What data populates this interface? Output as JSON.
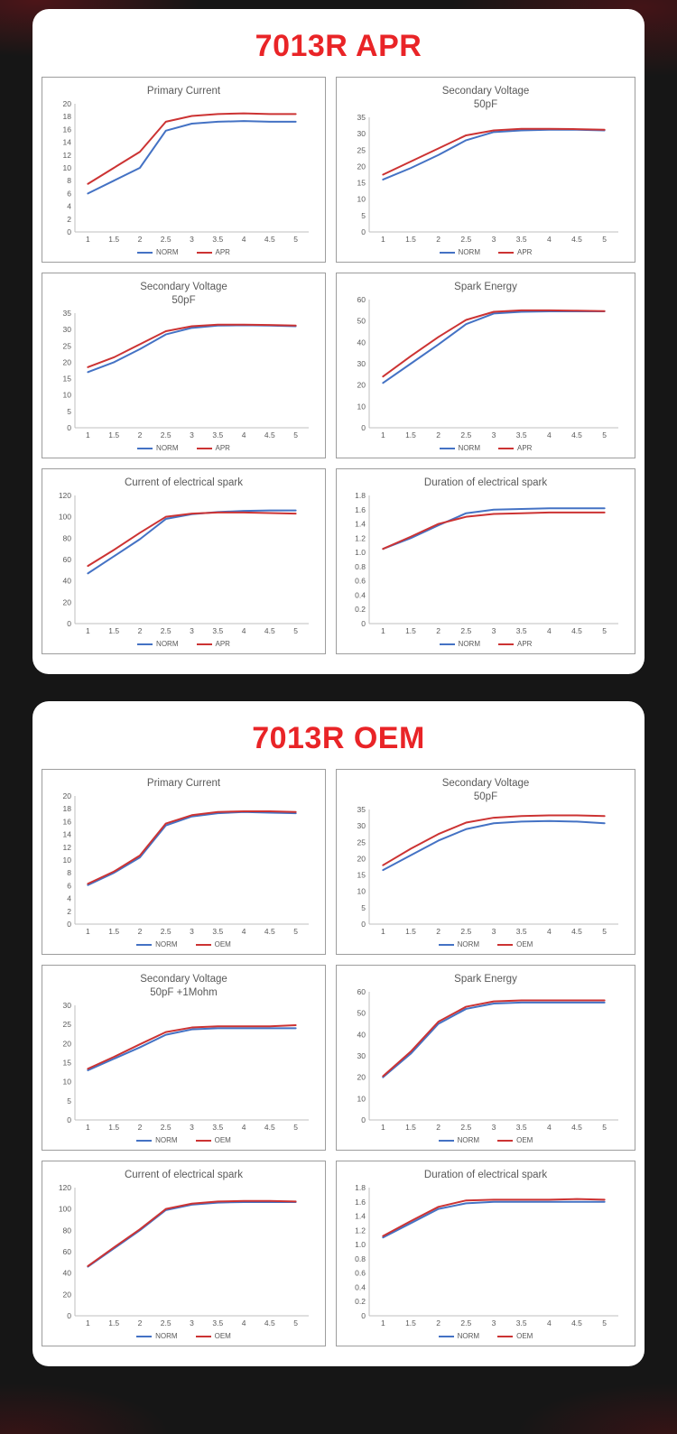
{
  "colors": {
    "panel_title_red": "#e92427",
    "norm_blue": "#4472c4",
    "compare_red": "#cc3333",
    "axis_gray": "#bfbfbf",
    "label_gray": "#595959",
    "panel_bg": "#ffffff",
    "page_bg": "#161616"
  },
  "panels": [
    {
      "title": "7013R APR",
      "legend": [
        "NORM",
        "APR"
      ]
    },
    {
      "title": "7013R OEM",
      "legend": [
        "NORM",
        "OEM"
      ]
    }
  ],
  "chart_data": [
    {
      "type": "line",
      "group": "7013R APR",
      "title": "Primary Current",
      "subtitle": "",
      "x": [
        1,
        1.5,
        2,
        2.5,
        3,
        3.5,
        4,
        4.5,
        5
      ],
      "ylim": [
        0,
        20
      ],
      "ytick": 2,
      "grid": false,
      "legend_position": "bottom",
      "series": [
        {
          "name": "NORM",
          "color": "#4472c4",
          "values": [
            6,
            8,
            10,
            15.8,
            16.9,
            17.2,
            17.3,
            17.2,
            17.2
          ]
        },
        {
          "name": "APR",
          "color": "#cc3333",
          "values": [
            7.5,
            10,
            12.5,
            17.2,
            18.1,
            18.4,
            18.5,
            18.4,
            18.4
          ]
        }
      ]
    },
    {
      "type": "line",
      "group": "7013R APR",
      "title": "Secondary Voltage",
      "subtitle": "50pF",
      "x": [
        1,
        1.5,
        2,
        2.5,
        3,
        3.5,
        4,
        4.5,
        5
      ],
      "ylim": [
        0,
        35
      ],
      "ytick": 5,
      "grid": false,
      "legend_position": "bottom",
      "series": [
        {
          "name": "NORM",
          "color": "#4472c4",
          "values": [
            16,
            19.5,
            23.5,
            28,
            30.5,
            31,
            31.2,
            31.2,
            31
          ]
        },
        {
          "name": "APR",
          "color": "#cc3333",
          "values": [
            17.5,
            21.5,
            25.5,
            29.5,
            31,
            31.5,
            31.5,
            31.4,
            31.2
          ]
        }
      ]
    },
    {
      "type": "line",
      "group": "7013R APR",
      "title": "Secondary Voltage",
      "subtitle": "50pF",
      "x": [
        1,
        1.5,
        2,
        2.5,
        3,
        3.5,
        4,
        4.5,
        5
      ],
      "ylim": [
        0,
        35
      ],
      "ytick": 5,
      "grid": false,
      "legend_position": "bottom",
      "series": [
        {
          "name": "NORM",
          "color": "#4472c4",
          "values": [
            17,
            20,
            24,
            28.5,
            30.5,
            31.2,
            31.3,
            31.2,
            31
          ]
        },
        {
          "name": "APR",
          "color": "#cc3333",
          "values": [
            18.5,
            21.5,
            25.5,
            29.5,
            31,
            31.5,
            31.5,
            31.4,
            31.2
          ]
        }
      ]
    },
    {
      "type": "line",
      "group": "7013R APR",
      "title": "Spark Energy",
      "subtitle": "",
      "x": [
        1,
        1.5,
        2,
        2.5,
        3,
        3.5,
        4,
        4.5,
        5
      ],
      "ylim": [
        0,
        60
      ],
      "ytick": 10,
      "grid": false,
      "legend_position": "bottom",
      "series": [
        {
          "name": "NORM",
          "color": "#4472c4",
          "values": [
            21,
            30,
            39,
            48.5,
            53.5,
            54.3,
            54.5,
            54.5,
            54.5
          ]
        },
        {
          "name": "APR",
          "color": "#cc3333",
          "values": [
            24,
            33.5,
            42.5,
            50.5,
            54.3,
            55,
            55,
            54.8,
            54.6
          ]
        }
      ]
    },
    {
      "type": "line",
      "group": "7013R APR",
      "title": "Current of electrical spark",
      "subtitle": "",
      "x": [
        1,
        1.5,
        2,
        2.5,
        3,
        3.5,
        4,
        4.5,
        5
      ],
      "ylim": [
        0,
        120
      ],
      "ytick": 20,
      "grid": false,
      "legend_position": "bottom",
      "series": [
        {
          "name": "NORM",
          "color": "#4472c4",
          "values": [
            47,
            63,
            79,
            98,
            102.5,
            104.5,
            105.5,
            106,
            106
          ]
        },
        {
          "name": "APR",
          "color": "#cc3333",
          "values": [
            54,
            69,
            85,
            100,
            103,
            104,
            104,
            103.5,
            103
          ]
        }
      ]
    },
    {
      "type": "line",
      "group": "7013R APR",
      "title": "Duration of electrical spark",
      "subtitle": "",
      "x": [
        1,
        1.5,
        2,
        2.5,
        3,
        3.5,
        4,
        4.5,
        5
      ],
      "ylim": [
        0,
        1.8
      ],
      "ytick": 0.2,
      "grid": false,
      "legend_position": "bottom",
      "series": [
        {
          "name": "NORM",
          "color": "#4472c4",
          "values": [
            1.05,
            1.2,
            1.38,
            1.55,
            1.6,
            1.61,
            1.62,
            1.62,
            1.62
          ]
        },
        {
          "name": "APR",
          "color": "#cc3333",
          "values": [
            1.05,
            1.22,
            1.4,
            1.5,
            1.54,
            1.55,
            1.56,
            1.56,
            1.56
          ]
        }
      ]
    },
    {
      "type": "line",
      "group": "7013R OEM",
      "title": "Primary Current",
      "subtitle": "",
      "x": [
        1,
        1.5,
        2,
        2.5,
        3,
        3.5,
        4,
        4.5,
        5
      ],
      "ylim": [
        0,
        20
      ],
      "ytick": 2,
      "grid": false,
      "legend_position": "bottom",
      "series": [
        {
          "name": "NORM",
          "color": "#4472c4",
          "values": [
            6.1,
            8,
            10.4,
            15.4,
            16.8,
            17.3,
            17.5,
            17.4,
            17.3
          ]
        },
        {
          "name": "OEM",
          "color": "#cc3333",
          "values": [
            6.3,
            8.2,
            10.7,
            15.7,
            17,
            17.5,
            17.6,
            17.6,
            17.5
          ]
        }
      ]
    },
    {
      "type": "line",
      "group": "7013R OEM",
      "title": "Secondary Voltage",
      "subtitle": "50pF",
      "x": [
        1,
        1.5,
        2,
        2.5,
        3,
        3.5,
        4,
        4.5,
        5
      ],
      "ylim": [
        0,
        35
      ],
      "ytick": 5,
      "grid": false,
      "legend_position": "bottom",
      "series": [
        {
          "name": "NORM",
          "color": "#4472c4",
          "values": [
            16.5,
            21,
            25.5,
            29,
            30.8,
            31.3,
            31.5,
            31.3,
            30.8
          ]
        },
        {
          "name": "OEM",
          "color": "#cc3333",
          "values": [
            18,
            23,
            27.5,
            31,
            32.5,
            33,
            33.2,
            33.2,
            33
          ]
        }
      ]
    },
    {
      "type": "line",
      "group": "7013R OEM",
      "title": "Secondary Voltage",
      "subtitle": "50pF +1Mohm",
      "x": [
        1,
        1.5,
        2,
        2.5,
        3,
        3.5,
        4,
        4.5,
        5
      ],
      "ylim": [
        0,
        30
      ],
      "ytick": 5,
      "grid": false,
      "legend_position": "bottom",
      "series": [
        {
          "name": "NORM",
          "color": "#4472c4",
          "values": [
            13,
            16,
            19,
            22.3,
            23.7,
            24,
            24,
            24,
            24
          ]
        },
        {
          "name": "OEM",
          "color": "#cc3333",
          "values": [
            13.4,
            16.5,
            19.8,
            23,
            24.2,
            24.5,
            24.5,
            24.5,
            24.8
          ]
        }
      ]
    },
    {
      "type": "line",
      "group": "7013R OEM",
      "title": "Spark Energy",
      "subtitle": "",
      "x": [
        1,
        1.5,
        2,
        2.5,
        3,
        3.5,
        4,
        4.5,
        5
      ],
      "ylim": [
        0,
        60
      ],
      "ytick": 10,
      "grid": false,
      "legend_position": "bottom",
      "series": [
        {
          "name": "NORM",
          "color": "#4472c4",
          "values": [
            20,
            31,
            45,
            52,
            54.5,
            55,
            55,
            55,
            55
          ]
        },
        {
          "name": "OEM",
          "color": "#cc3333",
          "values": [
            20.5,
            32,
            46,
            53,
            55.5,
            56,
            56,
            56,
            56
          ]
        }
      ]
    },
    {
      "type": "line",
      "group": "7013R OEM",
      "title": "Current of electrical spark",
      "subtitle": "",
      "x": [
        1,
        1.5,
        2,
        2.5,
        3,
        3.5,
        4,
        4.5,
        5
      ],
      "ylim": [
        0,
        120
      ],
      "ytick": 20,
      "grid": false,
      "legend_position": "bottom",
      "series": [
        {
          "name": "NORM",
          "color": "#4472c4",
          "values": [
            46,
            63,
            80,
            99,
            104,
            106,
            106.5,
            106.5,
            106.5
          ]
        },
        {
          "name": "OEM",
          "color": "#cc3333",
          "values": [
            46.5,
            64,
            81,
            100,
            105,
            107,
            107.5,
            107.5,
            107
          ]
        }
      ]
    },
    {
      "type": "line",
      "group": "7013R OEM",
      "title": "Duration of electrical spark",
      "subtitle": "",
      "x": [
        1,
        1.5,
        2,
        2.5,
        3,
        3.5,
        4,
        4.5,
        5
      ],
      "ylim": [
        0,
        1.8
      ],
      "ytick": 0.2,
      "grid": false,
      "legend_position": "bottom",
      "series": [
        {
          "name": "NORM",
          "color": "#4472c4",
          "values": [
            1.1,
            1.3,
            1.5,
            1.58,
            1.6,
            1.6,
            1.6,
            1.6,
            1.6
          ]
        },
        {
          "name": "OEM",
          "color": "#cc3333",
          "values": [
            1.12,
            1.33,
            1.53,
            1.62,
            1.63,
            1.63,
            1.63,
            1.64,
            1.63
          ]
        }
      ]
    }
  ]
}
